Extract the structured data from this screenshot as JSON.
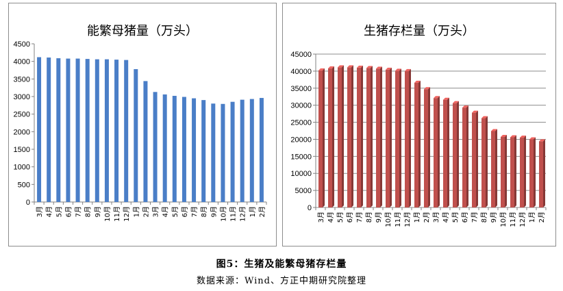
{
  "figure": {
    "caption": "图5：生猪及能繁母猪存栏量",
    "source": "数据来源：Wind、方正中期研究院整理"
  },
  "chart_data": [
    {
      "type": "bar",
      "title": "能繁母猪量（万头）",
      "categories": [
        "3月",
        "4月",
        "5月",
        "6月",
        "7月",
        "8月",
        "9月",
        "10月",
        "11月",
        "12月",
        "1月",
        "2月",
        "3月",
        "4月",
        "5月",
        "6月",
        "7月",
        "8月",
        "9月",
        "10月",
        "11月",
        "12月",
        "1月",
        "2月"
      ],
      "values": [
        4120,
        4110,
        4090,
        4080,
        4080,
        4070,
        4060,
        4060,
        4050,
        4040,
        3780,
        3440,
        3130,
        3060,
        3020,
        2990,
        2950,
        2900,
        2800,
        2790,
        2850,
        2910,
        2930,
        2960
      ],
      "ylim": [
        0,
        4500
      ],
      "yticks": [
        0,
        500,
        1000,
        1500,
        2000,
        2500,
        3000,
        3500,
        4000,
        4500
      ],
      "grid": false,
      "color": "#4a7ec7"
    },
    {
      "type": "bar",
      "title": "生猪存栏量（万头）",
      "categories": [
        "3月",
        "4月",
        "5月",
        "6月",
        "7月",
        "8月",
        "9月",
        "10月",
        "11月",
        "12月",
        "1月",
        "2月",
        "3月",
        "4月",
        "5月",
        "6月",
        "7月",
        "8月",
        "9月",
        "10月",
        "11月",
        "12月",
        "1月",
        "2月"
      ],
      "values": [
        40200,
        40800,
        41100,
        41100,
        41000,
        40900,
        40700,
        40400,
        40100,
        40000,
        36600,
        34700,
        32100,
        31600,
        30600,
        29300,
        27800,
        26200,
        22400,
        20700,
        20600,
        20500,
        20000,
        19400
      ],
      "ylim": [
        0,
        45000
      ],
      "yticks": [
        0,
        5000,
        10000,
        15000,
        20000,
        25000,
        30000,
        35000,
        40000,
        45000
      ],
      "grid": true,
      "color": "#c0504d"
    }
  ]
}
